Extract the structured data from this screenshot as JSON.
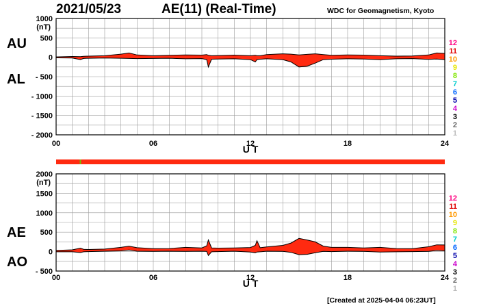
{
  "header": {
    "date": "2021/05/23",
    "title": "AE(11) (Real-Time)",
    "org": "WDC for Geomagnetism, Kyoto"
  },
  "footer": "[Created at 2025-04-04 06:23UT]",
  "colors": {
    "fill": "#ff2a10",
    "outline": "#000000",
    "grid": "#9a9a9a"
  },
  "station_legend": {
    "labels": [
      "12",
      "11",
      "10",
      "9",
      "8",
      "7",
      "6",
      "5",
      "4",
      "3",
      "2",
      "1"
    ],
    "colors": [
      "#ff0080",
      "#e00000",
      "#ff9900",
      "#e6e600",
      "#80e600",
      "#00cccc",
      "#0066ff",
      "#0000aa",
      "#cc00cc",
      "#000000",
      "#666666",
      "#bbbbbb"
    ]
  },
  "chart_data": [
    {
      "type": "area",
      "series_labels": [
        "AU",
        "AL"
      ],
      "unit": "(nT)",
      "xlabel": "U T",
      "xlim": [
        0,
        24
      ],
      "xticks": [
        0,
        6,
        12,
        18,
        24
      ],
      "xtick_labels": [
        "00",
        "06",
        "12",
        "18",
        "24"
      ],
      "ylim": [
        -2000,
        1000
      ],
      "yticks": [
        1000,
        500,
        0,
        -500,
        -1000,
        -1500,
        -2000
      ],
      "ytick_labels": [
        "1000",
        "500",
        "0",
        "- 500",
        "- 1000",
        "- 1500",
        "- 2000"
      ],
      "grid": true,
      "x": [
        0,
        1,
        1.5,
        1.7,
        2,
        3,
        4,
        4.5,
        5,
        6,
        7,
        8,
        9,
        9.3,
        9.4,
        9.6,
        10,
        11,
        12,
        12.3,
        12.4,
        12.6,
        13,
        14,
        14.5,
        15,
        15.5,
        16,
        16.5,
        17,
        18,
        19,
        20,
        21,
        22,
        23,
        23.5,
        24
      ],
      "upper": [
        10,
        20,
        15,
        25,
        30,
        40,
        80,
        110,
        60,
        40,
        50,
        60,
        55,
        70,
        50,
        40,
        45,
        55,
        40,
        50,
        40,
        40,
        70,
        90,
        80,
        60,
        75,
        90,
        70,
        50,
        60,
        55,
        40,
        30,
        35,
        60,
        110,
        100
      ],
      "lower": [
        -15,
        -20,
        -60,
        -30,
        -25,
        -20,
        -25,
        -30,
        -35,
        -30,
        -25,
        -40,
        -35,
        -60,
        -250,
        -50,
        -45,
        -40,
        -60,
        -120,
        -60,
        -50,
        -40,
        -60,
        -120,
        -250,
        -230,
        -150,
        -60,
        -50,
        -40,
        -45,
        -60,
        -40,
        -35,
        -55,
        -45,
        -60
      ]
    },
    {
      "type": "area",
      "series_labels": [
        "AE",
        "AO"
      ],
      "unit": "(nT)",
      "xlabel": "U T",
      "xlim": [
        0,
        24
      ],
      "xticks": [
        0,
        6,
        12,
        18,
        24
      ],
      "xtick_labels": [
        "00",
        "06",
        "12",
        "18",
        "24"
      ],
      "ylim": [
        -500,
        2000
      ],
      "yticks": [
        2000,
        1500,
        1000,
        500,
        0,
        -500
      ],
      "ytick_labels": [
        "2000",
        "1500",
        "1000",
        "500",
        "0",
        "- 500"
      ],
      "grid": true,
      "x": [
        0,
        1,
        1.5,
        1.7,
        2,
        3,
        4,
        4.5,
        5,
        6,
        7,
        8,
        9,
        9.3,
        9.4,
        9.6,
        10,
        11,
        12,
        12.3,
        12.4,
        12.6,
        13,
        14,
        14.5,
        15,
        15.5,
        16,
        16.5,
        17,
        18,
        19,
        20,
        21,
        22,
        23,
        23.5,
        24
      ],
      "upper": [
        30,
        45,
        90,
        60,
        55,
        65,
        110,
        140,
        100,
        75,
        80,
        110,
        95,
        150,
        300,
        95,
        90,
        95,
        105,
        160,
        280,
        100,
        120,
        160,
        220,
        340,
        300,
        250,
        140,
        110,
        110,
        95,
        110,
        80,
        75,
        125,
        175,
        170
      ],
      "lower": [
        -5,
        -5,
        -25,
        -5,
        0,
        10,
        20,
        40,
        10,
        5,
        10,
        5,
        10,
        5,
        -100,
        -5,
        0,
        10,
        -10,
        -30,
        -10,
        -5,
        10,
        5,
        -20,
        -80,
        -70,
        -30,
        5,
        0,
        10,
        5,
        -10,
        -5,
        0,
        5,
        30,
        20
      ]
    }
  ],
  "status_bar": {
    "color": "#ff2a10",
    "marker_hour": 1.5,
    "marker_color": "#7ab800"
  }
}
